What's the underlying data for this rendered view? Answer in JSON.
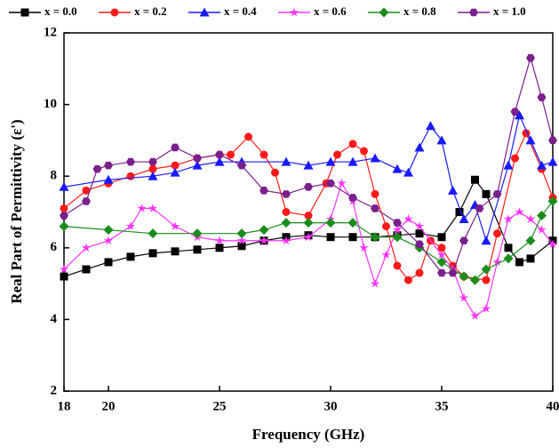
{
  "chart_data": {
    "type": "line",
    "x_label": "Frequency (GHz)",
    "y_label": "Real Part of Permittivity (ε')",
    "xlim": [
      18,
      40
    ],
    "ylim": [
      2,
      12
    ],
    "xticks": [
      18,
      20,
      25,
      30,
      35,
      40
    ],
    "yticks": [
      2,
      4,
      6,
      8,
      10,
      12
    ],
    "legend": "top",
    "series": [
      {
        "name": "x = 0.0",
        "color": "#000000",
        "marker": "square",
        "x": [
          18,
          19,
          20,
          21,
          22,
          23,
          24,
          25,
          26,
          27,
          28,
          29,
          30,
          31,
          32,
          33,
          34,
          35,
          35.8,
          36.5,
          37,
          38,
          38.5,
          39,
          40
        ],
        "values": [
          5.2,
          5.4,
          5.6,
          5.75,
          5.85,
          5.9,
          5.95,
          6.0,
          6.05,
          6.2,
          6.3,
          6.35,
          6.3,
          6.3,
          6.3,
          6.35,
          6.4,
          6.3,
          7.0,
          7.9,
          7.5,
          6.0,
          5.6,
          5.7,
          6.2
        ]
      },
      {
        "name": "x = 0.2",
        "color": "#ff1a1a",
        "marker": "circle",
        "x": [
          18,
          19,
          20,
          21,
          22,
          23,
          24,
          25,
          25.5,
          26.3,
          27,
          27.5,
          28,
          29,
          29.8,
          30.3,
          31,
          31.5,
          32,
          32.5,
          33,
          33.5,
          34,
          34.5,
          35,
          35.5,
          36,
          37,
          37.5,
          38.3,
          38.8,
          39.5,
          40
        ],
        "values": [
          7.1,
          7.6,
          7.8,
          8.0,
          8.2,
          8.3,
          8.5,
          8.6,
          8.6,
          9.1,
          8.6,
          8.1,
          7.0,
          6.9,
          7.8,
          8.6,
          8.9,
          8.7,
          7.5,
          6.6,
          5.5,
          5.1,
          5.3,
          6.2,
          6.0,
          5.5,
          5.2,
          5.1,
          6.4,
          8.5,
          9.2,
          8.2,
          7.4
        ]
      },
      {
        "name": "x = 0.4",
        "color": "#1a1aff",
        "marker": "triangle",
        "x": [
          18,
          20,
          22,
          23,
          24,
          25,
          26,
          28,
          29,
          30,
          31,
          32,
          33,
          33.5,
          34,
          34.5,
          35,
          35.5,
          36,
          36.5,
          37,
          38,
          38.5,
          39,
          39.5,
          40
        ],
        "values": [
          7.7,
          7.9,
          8.0,
          8.1,
          8.3,
          8.4,
          8.4,
          8.4,
          8.3,
          8.4,
          8.4,
          8.5,
          8.2,
          8.1,
          8.8,
          9.4,
          9.0,
          7.6,
          6.8,
          7.2,
          6.2,
          8.3,
          9.7,
          9.0,
          8.3,
          8.4
        ]
      },
      {
        "name": "x = 0.6",
        "color": "#ff33ff",
        "marker": "star",
        "x": [
          18,
          19,
          20,
          21,
          21.5,
          22,
          23,
          24,
          25,
          26,
          27,
          28,
          29,
          30,
          30.5,
          31,
          31.5,
          32,
          32.5,
          33,
          33.5,
          34,
          35,
          35.5,
          36,
          36.5,
          37,
          37.5,
          38,
          38.5,
          39,
          39.5,
          40
        ],
        "values": [
          5.4,
          6.0,
          6.2,
          6.6,
          7.1,
          7.1,
          6.6,
          6.3,
          6.2,
          6.2,
          6.2,
          6.2,
          6.3,
          6.8,
          7.8,
          7.3,
          6.0,
          5.0,
          5.8,
          6.5,
          6.8,
          6.6,
          5.8,
          5.4,
          4.6,
          4.1,
          4.3,
          5.6,
          6.8,
          7.0,
          6.8,
          6.5,
          6.1
        ]
      },
      {
        "name": "x = 0.8",
        "color": "#1a8c1a",
        "marker": "diamond",
        "x": [
          18,
          20,
          22,
          24,
          26,
          27,
          28,
          29,
          30,
          31,
          32,
          33,
          34,
          35,
          36,
          36.5,
          37,
          38,
          39,
          39.5,
          40
        ],
        "values": [
          6.6,
          6.5,
          6.4,
          6.4,
          6.4,
          6.5,
          6.7,
          6.7,
          6.7,
          6.7,
          6.3,
          6.3,
          6.0,
          5.6,
          5.2,
          5.1,
          5.4,
          5.7,
          6.2,
          6.9,
          7.3
        ]
      },
      {
        "name": "x = 1.0",
        "color": "#7a1f8c",
        "marker": "hexagon",
        "x": [
          18,
          19,
          19.5,
          20,
          21,
          22,
          23,
          24,
          25,
          26,
          27,
          28,
          29,
          30,
          31,
          32,
          33,
          34,
          35,
          35.5,
          36,
          36.7,
          37.5,
          38.3,
          39,
          39.5,
          40
        ],
        "values": [
          6.9,
          7.3,
          8.2,
          8.3,
          8.4,
          8.4,
          8.8,
          8.5,
          8.6,
          8.3,
          7.6,
          7.5,
          7.7,
          7.8,
          7.4,
          7.1,
          6.7,
          6.1,
          5.3,
          5.3,
          6.2,
          7.1,
          7.5,
          9.8,
          11.3,
          10.2,
          9.0
        ]
      }
    ]
  }
}
